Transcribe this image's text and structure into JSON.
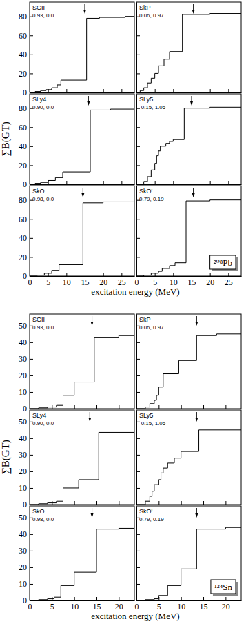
{
  "chart_data": [
    {
      "type": "line",
      "line_style": "step",
      "title": "SGII",
      "subtitle": "0.93, 0.0",
      "tick_labels": "y",
      "x": [
        0,
        1.5,
        3,
        4.5,
        6,
        7.5,
        8.5,
        15.5,
        19,
        26,
        28.5
      ],
      "values": [
        0,
        1,
        2,
        3,
        5,
        8,
        13,
        78,
        79,
        80,
        80
      ],
      "xlim": [
        0,
        28.5
      ],
      "ylim": [
        0,
        95
      ],
      "xticks": [
        0,
        5,
        10,
        15,
        20,
        25
      ],
      "yticks": [
        0,
        20,
        40,
        60,
        80
      ],
      "arrow": 15
    },
    {
      "type": "line",
      "line_style": "step",
      "title": "SkP",
      "subtitle": "0.06, 0.97",
      "tick_labels": false,
      "x": [
        0,
        1,
        2,
        3,
        4,
        5,
        6,
        7.5,
        9,
        12.5,
        20,
        28.5
      ],
      "values": [
        0,
        2,
        5,
        10,
        15,
        20,
        28,
        35,
        43,
        82,
        83,
        83
      ],
      "xlim": [
        0,
        28.5
      ],
      "ylim": [
        0,
        95
      ],
      "xticks": [
        0,
        5,
        10,
        15,
        20,
        25
      ],
      "yticks": [
        0,
        20,
        40,
        60,
        80
      ],
      "arrow": 15.5
    },
    {
      "type": "line",
      "line_style": "step",
      "title": "SLy4",
      "subtitle": "0.90, 0.0",
      "tick_labels": "y",
      "ylabel": "∑B(GT)",
      "x": [
        0,
        1.5,
        3,
        5,
        7,
        9,
        16.5,
        22,
        28.5
      ],
      "values": [
        0,
        1,
        2,
        4,
        7,
        13,
        78,
        79,
        79
      ],
      "xlim": [
        0,
        28.5
      ],
      "ylim": [
        0,
        95
      ],
      "xticks": [
        0,
        5,
        10,
        15,
        20,
        25
      ],
      "yticks": [
        0,
        20,
        40,
        60,
        80
      ],
      "arrow": 16
    },
    {
      "type": "line",
      "line_style": "step",
      "title": "SLy5",
      "subtitle": "-0.15, 1.05",
      "tick_labels": false,
      "x": [
        0,
        2,
        3,
        4,
        5,
        5.5,
        6,
        6.5,
        8,
        9,
        10,
        13,
        20,
        28.5
      ],
      "values": [
        0,
        3,
        8,
        15,
        22,
        30,
        35,
        40,
        43,
        45,
        47,
        80,
        81,
        81
      ],
      "xlim": [
        0,
        28.5
      ],
      "ylim": [
        0,
        95
      ],
      "xticks": [
        0,
        5,
        10,
        15,
        20,
        25
      ],
      "yticks": [
        0,
        20,
        40,
        60,
        80
      ],
      "arrow": 15
    },
    {
      "type": "line",
      "line_style": "step",
      "title": "SkO",
      "subtitle": "0.98, 0.0",
      "tick_labels": true,
      "xlabel": "excitation energy (MeV)",
      "x": [
        0,
        2,
        4,
        6,
        8,
        14.5,
        20,
        28.5
      ],
      "values": [
        0,
        1,
        3,
        6,
        12,
        77,
        78,
        79
      ],
      "xlim": [
        0,
        28.5
      ],
      "ylim": [
        0,
        95
      ],
      "xticks": [
        0,
        5,
        10,
        15,
        20,
        25
      ],
      "yticks": [
        0,
        20,
        40,
        60,
        80
      ],
      "arrow": 14.5
    },
    {
      "type": "line",
      "line_style": "step",
      "title": "SkO'",
      "subtitle": "0.79, 0.19",
      "tick_labels": "x",
      "annotation": "²⁰⁸Pb",
      "x": [
        0,
        2,
        4,
        6,
        7,
        9,
        10.5,
        13.5,
        20,
        28.5
      ],
      "values": [
        0,
        1,
        3,
        5,
        8,
        11,
        14,
        79,
        80,
        81
      ],
      "xlim": [
        0,
        28.5
      ],
      "ylim": [
        0,
        95
      ],
      "xticks": [
        0,
        5,
        10,
        15,
        20,
        25
      ],
      "yticks": [
        0,
        20,
        40,
        60,
        80
      ],
      "arrow": 15.5
    },
    {
      "type": "line",
      "line_style": "step",
      "title": "SGII",
      "subtitle": "0.93, 0.0",
      "tick_labels": "y",
      "x": [
        0,
        2,
        4,
        6,
        7.5,
        10,
        14.5,
        20,
        23.5
      ],
      "values": [
        0,
        0.5,
        1,
        2,
        8,
        16,
        43,
        44,
        44
      ],
      "xlim": [
        0,
        23.5
      ],
      "ylim": [
        0,
        57
      ],
      "xticks": [
        0,
        5,
        10,
        15,
        20
      ],
      "yticks": [
        0,
        10,
        20,
        30,
        40,
        50
      ],
      "arrow": 14
    },
    {
      "type": "line",
      "line_style": "step",
      "title": "SkP",
      "subtitle": "0.06, 0.97",
      "tick_labels": false,
      "x": [
        0,
        2,
        3,
        4,
        4.5,
        5,
        6,
        9.5,
        13.5,
        18,
        23.5
      ],
      "values": [
        0,
        1,
        3,
        5,
        8,
        13,
        21,
        29,
        44,
        45,
        45
      ],
      "xlim": [
        0,
        23.5
      ],
      "ylim": [
        0,
        57
      ],
      "xticks": [
        0,
        5,
        10,
        15,
        20
      ],
      "yticks": [
        0,
        10,
        20,
        30,
        40,
        50
      ],
      "arrow": 13.5
    },
    {
      "type": "line",
      "line_style": "step",
      "title": "SLy4",
      "subtitle": "0.90, 0.0",
      "tick_labels": "y",
      "ylabel": "∑B(GT)",
      "x": [
        0,
        2,
        4,
        6,
        7.5,
        11,
        15.5,
        23.5
      ],
      "values": [
        0,
        0.5,
        1,
        2,
        10,
        15,
        43.5,
        43.5
      ],
      "xlim": [
        0,
        23.5
      ],
      "ylim": [
        0,
        57
      ],
      "xticks": [
        0,
        5,
        10,
        15,
        20
      ],
      "yticks": [
        0,
        10,
        20,
        30,
        40,
        50
      ],
      "arrow": 13.5
    },
    {
      "type": "line",
      "line_style": "step",
      "title": "SLy5",
      "subtitle": "-0.15, 1.05",
      "tick_labels": false,
      "x": [
        0,
        2,
        3,
        3.5,
        4,
        5,
        5.5,
        6,
        7,
        8.5,
        10,
        14,
        23.5
      ],
      "values": [
        0,
        2,
        5,
        8,
        12,
        15,
        19,
        22,
        25,
        28,
        32,
        45,
        45
      ],
      "xlim": [
        0,
        23.5
      ],
      "ylim": [
        0,
        57
      ],
      "xticks": [
        0,
        5,
        10,
        15,
        20
      ],
      "yticks": [
        0,
        10,
        20,
        30,
        40,
        50
      ],
      "arrow": 13.5
    },
    {
      "type": "line",
      "line_style": "step",
      "title": "SkO",
      "subtitle": "0.98, 0.0",
      "tick_labels": true,
      "xlabel": "excitation energy (MeV)",
      "x": [
        0,
        2,
        4,
        5.5,
        7,
        10,
        15,
        20,
        23.5
      ],
      "values": [
        0,
        0.5,
        1,
        2,
        9,
        17,
        43,
        43.5,
        43.5
      ],
      "xlim": [
        0,
        23.5
      ],
      "ylim": [
        0,
        57
      ],
      "xticks": [
        0,
        5,
        10,
        15,
        20
      ],
      "yticks": [
        0,
        10,
        20,
        30,
        40,
        50
      ],
      "arrow": 14
    },
    {
      "type": "line",
      "line_style": "step",
      "title": "SkO'",
      "subtitle": "0.79, 0.19",
      "tick_labels": "x",
      "annotation": "¹²⁴Sn",
      "x": [
        0,
        2,
        4,
        5,
        7,
        10,
        13.5,
        20,
        23.5
      ],
      "values": [
        0,
        0.5,
        1,
        3,
        9,
        19,
        43,
        44,
        44
      ],
      "xlim": [
        0,
        23.5
      ],
      "ylim": [
        0,
        57
      ],
      "xticks": [
        0,
        5,
        10,
        15,
        20
      ],
      "yticks": [
        0,
        10,
        20,
        30,
        40,
        50
      ],
      "arrow": 13.5
    }
  ]
}
